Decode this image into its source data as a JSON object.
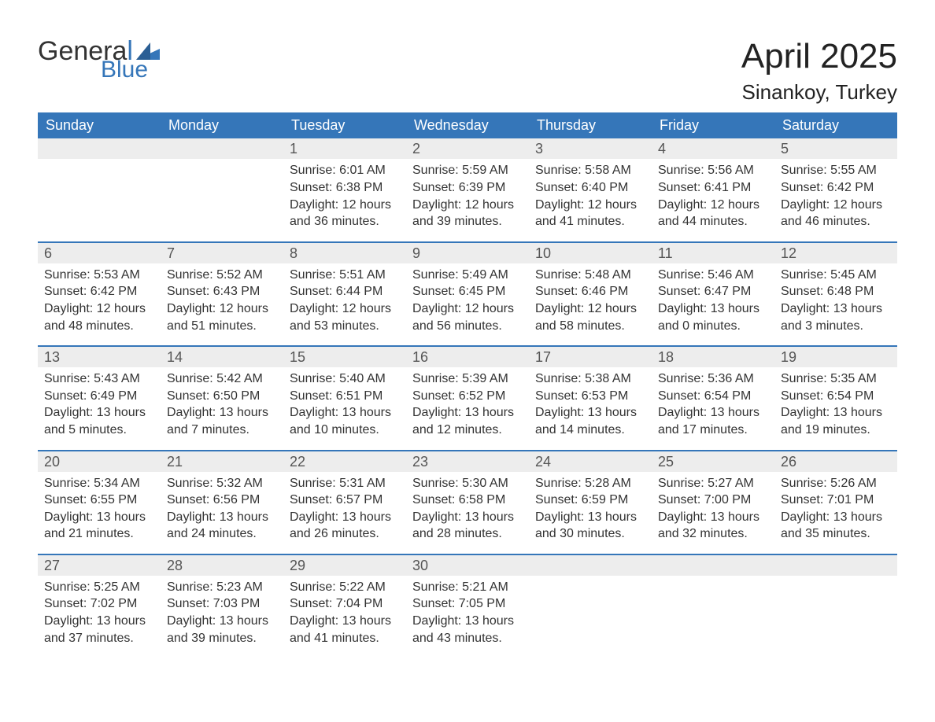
{
  "brand": {
    "name_part1": "Genera",
    "name_part1_last": "l",
    "name_part2": "Blue",
    "accent_color": "#3576b9",
    "text_color": "#333333"
  },
  "title": {
    "month_year": "April 2025",
    "location": "Sinankoy, Turkey",
    "title_fontsize": 44,
    "location_fontsize": 26
  },
  "colors": {
    "header_bg": "#3576b9",
    "header_text": "#ffffff",
    "daynum_bg": "#ededed",
    "daynum_text": "#555555",
    "body_text": "#333333",
    "week_divider": "#3576b9",
    "page_bg": "#ffffff"
  },
  "layout": {
    "columns": 7,
    "col_headers": [
      "Sunday",
      "Monday",
      "Tuesday",
      "Wednesday",
      "Thursday",
      "Friday",
      "Saturday"
    ],
    "header_fontsize": 18,
    "cell_fontsize": 16
  },
  "weeks": [
    [
      {
        "empty": true
      },
      {
        "empty": true
      },
      {
        "day": "1",
        "sunrise": "Sunrise: 6:01 AM",
        "sunset": "Sunset: 6:38 PM",
        "dl1": "Daylight: 12 hours",
        "dl2": "and 36 minutes."
      },
      {
        "day": "2",
        "sunrise": "Sunrise: 5:59 AM",
        "sunset": "Sunset: 6:39 PM",
        "dl1": "Daylight: 12 hours",
        "dl2": "and 39 minutes."
      },
      {
        "day": "3",
        "sunrise": "Sunrise: 5:58 AM",
        "sunset": "Sunset: 6:40 PM",
        "dl1": "Daylight: 12 hours",
        "dl2": "and 41 minutes."
      },
      {
        "day": "4",
        "sunrise": "Sunrise: 5:56 AM",
        "sunset": "Sunset: 6:41 PM",
        "dl1": "Daylight: 12 hours",
        "dl2": "and 44 minutes."
      },
      {
        "day": "5",
        "sunrise": "Sunrise: 5:55 AM",
        "sunset": "Sunset: 6:42 PM",
        "dl1": "Daylight: 12 hours",
        "dl2": "and 46 minutes."
      }
    ],
    [
      {
        "day": "6",
        "sunrise": "Sunrise: 5:53 AM",
        "sunset": "Sunset: 6:42 PM",
        "dl1": "Daylight: 12 hours",
        "dl2": "and 48 minutes."
      },
      {
        "day": "7",
        "sunrise": "Sunrise: 5:52 AM",
        "sunset": "Sunset: 6:43 PM",
        "dl1": "Daylight: 12 hours",
        "dl2": "and 51 minutes."
      },
      {
        "day": "8",
        "sunrise": "Sunrise: 5:51 AM",
        "sunset": "Sunset: 6:44 PM",
        "dl1": "Daylight: 12 hours",
        "dl2": "and 53 minutes."
      },
      {
        "day": "9",
        "sunrise": "Sunrise: 5:49 AM",
        "sunset": "Sunset: 6:45 PM",
        "dl1": "Daylight: 12 hours",
        "dl2": "and 56 minutes."
      },
      {
        "day": "10",
        "sunrise": "Sunrise: 5:48 AM",
        "sunset": "Sunset: 6:46 PM",
        "dl1": "Daylight: 12 hours",
        "dl2": "and 58 minutes."
      },
      {
        "day": "11",
        "sunrise": "Sunrise: 5:46 AM",
        "sunset": "Sunset: 6:47 PM",
        "dl1": "Daylight: 13 hours",
        "dl2": "and 0 minutes."
      },
      {
        "day": "12",
        "sunrise": "Sunrise: 5:45 AM",
        "sunset": "Sunset: 6:48 PM",
        "dl1": "Daylight: 13 hours",
        "dl2": "and 3 minutes."
      }
    ],
    [
      {
        "day": "13",
        "sunrise": "Sunrise: 5:43 AM",
        "sunset": "Sunset: 6:49 PM",
        "dl1": "Daylight: 13 hours",
        "dl2": "and 5 minutes."
      },
      {
        "day": "14",
        "sunrise": "Sunrise: 5:42 AM",
        "sunset": "Sunset: 6:50 PM",
        "dl1": "Daylight: 13 hours",
        "dl2": "and 7 minutes."
      },
      {
        "day": "15",
        "sunrise": "Sunrise: 5:40 AM",
        "sunset": "Sunset: 6:51 PM",
        "dl1": "Daylight: 13 hours",
        "dl2": "and 10 minutes."
      },
      {
        "day": "16",
        "sunrise": "Sunrise: 5:39 AM",
        "sunset": "Sunset: 6:52 PM",
        "dl1": "Daylight: 13 hours",
        "dl2": "and 12 minutes."
      },
      {
        "day": "17",
        "sunrise": "Sunrise: 5:38 AM",
        "sunset": "Sunset: 6:53 PM",
        "dl1": "Daylight: 13 hours",
        "dl2": "and 14 minutes."
      },
      {
        "day": "18",
        "sunrise": "Sunrise: 5:36 AM",
        "sunset": "Sunset: 6:54 PM",
        "dl1": "Daylight: 13 hours",
        "dl2": "and 17 minutes."
      },
      {
        "day": "19",
        "sunrise": "Sunrise: 5:35 AM",
        "sunset": "Sunset: 6:54 PM",
        "dl1": "Daylight: 13 hours",
        "dl2": "and 19 minutes."
      }
    ],
    [
      {
        "day": "20",
        "sunrise": "Sunrise: 5:34 AM",
        "sunset": "Sunset: 6:55 PM",
        "dl1": "Daylight: 13 hours",
        "dl2": "and 21 minutes."
      },
      {
        "day": "21",
        "sunrise": "Sunrise: 5:32 AM",
        "sunset": "Sunset: 6:56 PM",
        "dl1": "Daylight: 13 hours",
        "dl2": "and 24 minutes."
      },
      {
        "day": "22",
        "sunrise": "Sunrise: 5:31 AM",
        "sunset": "Sunset: 6:57 PM",
        "dl1": "Daylight: 13 hours",
        "dl2": "and 26 minutes."
      },
      {
        "day": "23",
        "sunrise": "Sunrise: 5:30 AM",
        "sunset": "Sunset: 6:58 PM",
        "dl1": "Daylight: 13 hours",
        "dl2": "and 28 minutes."
      },
      {
        "day": "24",
        "sunrise": "Sunrise: 5:28 AM",
        "sunset": "Sunset: 6:59 PM",
        "dl1": "Daylight: 13 hours",
        "dl2": "and 30 minutes."
      },
      {
        "day": "25",
        "sunrise": "Sunrise: 5:27 AM",
        "sunset": "Sunset: 7:00 PM",
        "dl1": "Daylight: 13 hours",
        "dl2": "and 32 minutes."
      },
      {
        "day": "26",
        "sunrise": "Sunrise: 5:26 AM",
        "sunset": "Sunset: 7:01 PM",
        "dl1": "Daylight: 13 hours",
        "dl2": "and 35 minutes."
      }
    ],
    [
      {
        "day": "27",
        "sunrise": "Sunrise: 5:25 AM",
        "sunset": "Sunset: 7:02 PM",
        "dl1": "Daylight: 13 hours",
        "dl2": "and 37 minutes."
      },
      {
        "day": "28",
        "sunrise": "Sunrise: 5:23 AM",
        "sunset": "Sunset: 7:03 PM",
        "dl1": "Daylight: 13 hours",
        "dl2": "and 39 minutes."
      },
      {
        "day": "29",
        "sunrise": "Sunrise: 5:22 AM",
        "sunset": "Sunset: 7:04 PM",
        "dl1": "Daylight: 13 hours",
        "dl2": "and 41 minutes."
      },
      {
        "day": "30",
        "sunrise": "Sunrise: 5:21 AM",
        "sunset": "Sunset: 7:05 PM",
        "dl1": "Daylight: 13 hours",
        "dl2": "and 43 minutes."
      },
      {
        "empty": true
      },
      {
        "empty": true
      },
      {
        "empty": true
      }
    ]
  ]
}
